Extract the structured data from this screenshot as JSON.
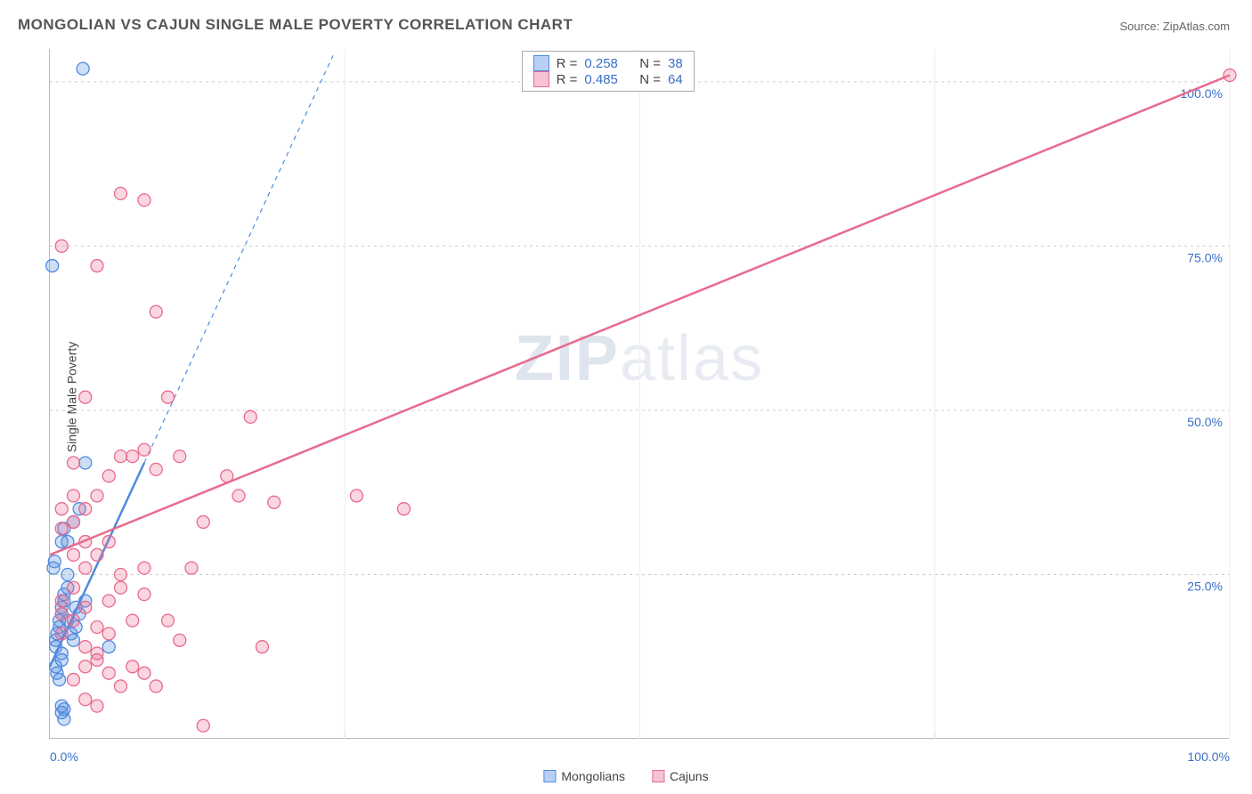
{
  "title": "MONGOLIAN VS CAJUN SINGLE MALE POVERTY CORRELATION CHART",
  "source": "Source: ZipAtlas.com",
  "watermark": {
    "part1": "ZIP",
    "part2": "atlas"
  },
  "chart": {
    "type": "scatter",
    "y_axis_label": "Single Male Poverty",
    "xlim": [
      0,
      100
    ],
    "ylim": [
      0,
      105
    ],
    "y_ticks": [
      25,
      50,
      75,
      100
    ],
    "y_tick_labels": [
      "25.0%",
      "50.0%",
      "75.0%",
      "100.0%"
    ],
    "x_tick_labels": {
      "left": "0.0%",
      "right": "100.0%"
    },
    "grid_color": "#cccccc",
    "axis_color": "#bbbbbb",
    "background_color": "#ffffff",
    "marker_radius": 7,
    "marker_stroke_width": 1.3,
    "marker_fill_opacity": 0.28,
    "trendline_width": 2.5,
    "series": [
      {
        "name": "Mongolians",
        "color": "#4f8ae0",
        "fill": "rgba(79,138,224,0.28)",
        "R": 0.258,
        "N": 38,
        "trend": {
          "x1": 0,
          "y1": 11,
          "x2": 8,
          "y2": 42,
          "dashed_ext": {
            "x2": 24,
            "y2": 104
          }
        },
        "points": [
          [
            0.5,
            14
          ],
          [
            0.5,
            15
          ],
          [
            0.6,
            16
          ],
          [
            0.8,
            17
          ],
          [
            0.8,
            18
          ],
          [
            1.0,
            19
          ],
          [
            1.0,
            20
          ],
          [
            1.0,
            13
          ],
          [
            1.0,
            12
          ],
          [
            1.2,
            22
          ],
          [
            1.2,
            21
          ],
          [
            1.5,
            23
          ],
          [
            1.5,
            25
          ],
          [
            0.3,
            26
          ],
          [
            0.4,
            27
          ],
          [
            0.5,
            11
          ],
          [
            0.6,
            10
          ],
          [
            0.8,
            9
          ],
          [
            1.0,
            30
          ],
          [
            1.2,
            32
          ],
          [
            1.5,
            30
          ],
          [
            2.0,
            33
          ],
          [
            2.5,
            35
          ],
          [
            3.0,
            42
          ],
          [
            1.0,
            5
          ],
          [
            1.0,
            4
          ],
          [
            1.2,
            3
          ],
          [
            1.2,
            4.5
          ],
          [
            5.0,
            14
          ],
          [
            2.0,
            15
          ],
          [
            2.2,
            17
          ],
          [
            2.5,
            19
          ],
          [
            3.0,
            21
          ],
          [
            1.5,
            18
          ],
          [
            0.2,
            72
          ],
          [
            2.8,
            102
          ],
          [
            1.8,
            16
          ],
          [
            2.2,
            20
          ]
        ]
      },
      {
        "name": "Cajuns",
        "color": "#e86a8e",
        "fill": "rgba(232,106,142,0.28)",
        "R": 0.485,
        "N": 64,
        "trend": {
          "x1": 0,
          "y1": 28,
          "x2": 100,
          "y2": 101
        },
        "points": [
          [
            2,
            18
          ],
          [
            3,
            20
          ],
          [
            4,
            17
          ],
          [
            5,
            21
          ],
          [
            6,
            23
          ],
          [
            3,
            14
          ],
          [
            4,
            12
          ],
          [
            5,
            16
          ],
          [
            7,
            18
          ],
          [
            8,
            22
          ],
          [
            3,
            26
          ],
          [
            4,
            28
          ],
          [
            5,
            30
          ],
          [
            6,
            25
          ],
          [
            8,
            26
          ],
          [
            2,
            33
          ],
          [
            3,
            35
          ],
          [
            4,
            37
          ],
          [
            5,
            40
          ],
          [
            7,
            43
          ],
          [
            9,
            41
          ],
          [
            11,
            43
          ],
          [
            6,
            43
          ],
          [
            8,
            44
          ],
          [
            2,
            42
          ],
          [
            3,
            52
          ],
          [
            10,
            52
          ],
          [
            15,
            40
          ],
          [
            16,
            37
          ],
          [
            17,
            49
          ],
          [
            19,
            36
          ],
          [
            18,
            14
          ],
          [
            13,
            33
          ],
          [
            9,
            65
          ],
          [
            1,
            75
          ],
          [
            6,
            83
          ],
          [
            8,
            82
          ],
          [
            4,
            72
          ],
          [
            100,
            101
          ],
          [
            26,
            37
          ],
          [
            30,
            35
          ],
          [
            12,
            26
          ],
          [
            10,
            18
          ],
          [
            11,
            15
          ],
          [
            13,
            2
          ],
          [
            2,
            9
          ],
          [
            3,
            11
          ],
          [
            4,
            13
          ],
          [
            5,
            10
          ],
          [
            6,
            8
          ],
          [
            7,
            11
          ],
          [
            8,
            10
          ],
          [
            9,
            8
          ],
          [
            3,
            6
          ],
          [
            4,
            5
          ],
          [
            2,
            28
          ],
          [
            3,
            30
          ],
          [
            1,
            32
          ],
          [
            1,
            35
          ],
          [
            2,
            37
          ],
          [
            1,
            19
          ],
          [
            1,
            21
          ],
          [
            2,
            23
          ],
          [
            1,
            16
          ]
        ]
      }
    ]
  },
  "legend_bottom": [
    {
      "label": "Mongolians",
      "color": "#4f8ae0",
      "fill": "rgba(79,138,224,0.4)"
    },
    {
      "label": "Cajuns",
      "color": "#e86a8e",
      "fill": "rgba(232,106,142,0.4)"
    }
  ],
  "stats_legend": [
    {
      "color": "#4f8ae0",
      "fill": "rgba(79,138,224,0.4)",
      "R": "0.258",
      "N": "38"
    },
    {
      "color": "#e86a8e",
      "fill": "rgba(232,106,142,0.4)",
      "R": "0.485",
      "N": "64"
    }
  ]
}
